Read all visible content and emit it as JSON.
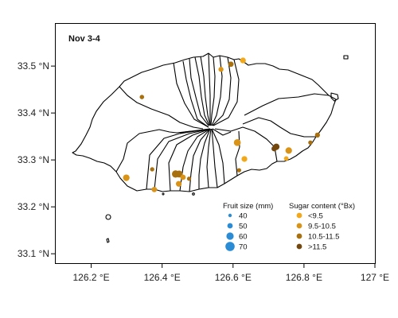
{
  "map": {
    "title": "Nov 3-4",
    "x_axis": {
      "range": [
        126.1,
        127.0
      ],
      "ticks": [
        {
          "value": 126.2,
          "label": "126.2 °E"
        },
        {
          "value": 126.4,
          "label": "126.4 °E"
        },
        {
          "value": 126.6,
          "label": "126.6 °E"
        },
        {
          "value": 126.8,
          "label": "126.8 °E"
        },
        {
          "value": 127.0,
          "label": "127 °E"
        }
      ]
    },
    "y_axis": {
      "range": [
        33.08,
        33.59
      ],
      "ticks": [
        {
          "value": 33.1,
          "label": "33.1 °N"
        },
        {
          "value": 33.2,
          "label": "33.2 °N"
        },
        {
          "value": 33.3,
          "label": "33.3 °N"
        },
        {
          "value": 33.4,
          "label": "33.4 °N"
        },
        {
          "value": 33.5,
          "label": "33.5 °N"
        }
      ]
    },
    "legend": {
      "size_title": "Fruit size (mm)",
      "sizes": [
        {
          "label": "40",
          "value": 40
        },
        {
          "label": "50",
          "value": 50
        },
        {
          "label": "60",
          "value": 60
        },
        {
          "label": "70",
          "value": 70
        }
      ],
      "sugar_title": "Sugar content (°Bx)",
      "sugar_classes": [
        {
          "label": "<9.5",
          "color": "#f2a81b"
        },
        {
          "label": "9.5-10.5",
          "color": "#d99418"
        },
        {
          "label": "10.5-11.5",
          "color": "#a9700f"
        },
        {
          "label": ">11.5",
          "color": "#74480d"
        }
      ],
      "size_color": "#2b8cd6"
    }
  },
  "chart_data": {
    "type": "scatter",
    "title": "Nov 3-4",
    "xlabel": "",
    "ylabel": "",
    "xlim": [
      126.1,
      127.0
    ],
    "ylim": [
      33.08,
      33.59
    ],
    "points": [
      {
        "lon": 126.628,
        "lat": 33.512,
        "size": 52,
        "sugar": "<9.5"
      },
      {
        "lon": 126.594,
        "lat": 33.504,
        "size": 50,
        "sugar": "10.5-11.5"
      },
      {
        "lon": 126.566,
        "lat": 33.493,
        "size": 48,
        "sugar": "9.5-10.5"
      },
      {
        "lon": 126.343,
        "lat": 33.434,
        "size": 45,
        "sugar": "10.5-11.5"
      },
      {
        "lon": 126.612,
        "lat": 33.337,
        "size": 58,
        "sugar": "9.5-10.5"
      },
      {
        "lon": 126.722,
        "lat": 33.328,
        "size": 55,
        "sugar": ">11.5"
      },
      {
        "lon": 126.716,
        "lat": 33.324,
        "size": 50,
        "sugar": ">11.5"
      },
      {
        "lon": 126.757,
        "lat": 33.32,
        "size": 56,
        "sugar": "9.5-10.5"
      },
      {
        "lon": 126.75,
        "lat": 33.303,
        "size": 46,
        "sugar": "<9.5"
      },
      {
        "lon": 126.818,
        "lat": 33.337,
        "size": 44,
        "sugar": "10.5-11.5"
      },
      {
        "lon": 126.838,
        "lat": 33.353,
        "size": 48,
        "sugar": "10.5-11.5"
      },
      {
        "lon": 126.632,
        "lat": 33.302,
        "size": 52,
        "sugar": "<9.5"
      },
      {
        "lon": 126.617,
        "lat": 33.278,
        "size": 44,
        "sugar": "10.5-11.5"
      },
      {
        "lon": 126.299,
        "lat": 33.262,
        "size": 56,
        "sugar": "9.5-10.5"
      },
      {
        "lon": 126.372,
        "lat": 33.28,
        "size": 44,
        "sugar": "10.5-11.5"
      },
      {
        "lon": 126.378,
        "lat": 33.237,
        "size": 50,
        "sugar": "9.5-10.5"
      },
      {
        "lon": 126.438,
        "lat": 33.27,
        "size": 60,
        "sugar": "10.5-11.5"
      },
      {
        "lon": 126.448,
        "lat": 33.27,
        "size": 58,
        "sugar": "10.5-11.5"
      },
      {
        "lon": 126.459,
        "lat": 33.263,
        "size": 50,
        "sugar": "9.5-10.5"
      },
      {
        "lon": 126.447,
        "lat": 33.249,
        "size": 52,
        "sugar": "9.5-10.5"
      },
      {
        "lon": 126.476,
        "lat": 33.26,
        "size": 44,
        "sugar": "10.5-11.5"
      }
    ]
  }
}
